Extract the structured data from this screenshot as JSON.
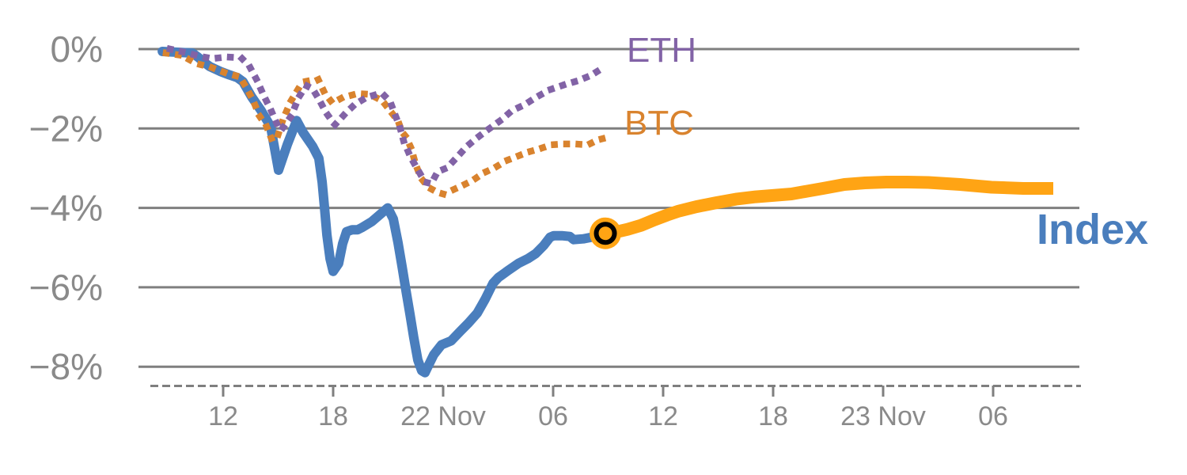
{
  "chart": {
    "series_labels": {
      "eth": "ETH",
      "btc": "BTC",
      "index": "Index"
    },
    "colors": {
      "eth": "#8263a6",
      "btc": "#d9832e",
      "index": "#4a7ebd",
      "forecast": "#ffa414",
      "grid": "#7f7f7f",
      "axis_text": "#8a8a8a",
      "marker_ring": "#000000",
      "background": "#ffffff"
    }
  },
  "chart_data": {
    "type": "line",
    "title": "",
    "xlabel": "",
    "ylabel": "",
    "x_unit": "hours relative to 22 Nov 00:00",
    "y_unit": "percent change",
    "grid": "horizontal",
    "legend_position": "inline-labels",
    "ylim": [
      -8.6,
      0.3
    ],
    "xlim": [
      -16.6,
      34.8
    ],
    "yticks": [
      {
        "value": 0,
        "label": "0%"
      },
      {
        "value": -2,
        "label": "−2%"
      },
      {
        "value": -4,
        "label": "−4%"
      },
      {
        "value": -6,
        "label": "−6%"
      },
      {
        "value": -8,
        "label": "−8%"
      }
    ],
    "xticks": [
      {
        "hour": -12,
        "label": "12"
      },
      {
        "hour": -6,
        "label": "18"
      },
      {
        "hour": 0,
        "label": "22 Nov"
      },
      {
        "hour": 6,
        "label": "06"
      },
      {
        "hour": 12,
        "label": "12"
      },
      {
        "hour": 18,
        "label": "18"
      },
      {
        "hour": 24,
        "label": "23 Nov"
      },
      {
        "hour": 30,
        "label": "06"
      }
    ],
    "series": [
      {
        "name": "Index",
        "style": "solid",
        "color_key": "index",
        "points": [
          [
            -15.32,
            -0.06
          ],
          [
            -13.68,
            -0.1
          ],
          [
            -13.38,
            -0.2
          ],
          [
            -13.08,
            -0.32
          ],
          [
            -12.73,
            -0.44
          ],
          [
            -12.17,
            -0.56
          ],
          [
            -11.66,
            -0.65
          ],
          [
            -11.22,
            -0.72
          ],
          [
            -10.92,
            -0.82
          ],
          [
            -10.45,
            -1.2
          ],
          [
            -9.93,
            -1.55
          ],
          [
            -9.41,
            -1.95
          ],
          [
            -8.98,
            -3.05
          ],
          [
            -8.5,
            -2.4
          ],
          [
            -7.99,
            -1.8
          ],
          [
            -7.64,
            -2.1
          ],
          [
            -7.12,
            -2.45
          ],
          [
            -6.78,
            -2.75
          ],
          [
            -6.6,
            -3.35
          ],
          [
            -6.47,
            -4.0
          ],
          [
            -6.34,
            -4.68
          ],
          [
            -6.17,
            -5.28
          ],
          [
            -6.0,
            -5.6
          ],
          [
            -5.7,
            -5.4
          ],
          [
            -5.48,
            -4.9
          ],
          [
            -5.27,
            -4.6
          ],
          [
            -4.96,
            -4.55
          ],
          [
            -4.66,
            -4.55
          ],
          [
            -4.45,
            -4.5
          ],
          [
            -3.88,
            -4.34
          ],
          [
            -3.37,
            -4.14
          ],
          [
            -3.02,
            -4.0
          ],
          [
            -2.72,
            -4.28
          ],
          [
            -2.46,
            -4.88
          ],
          [
            -2.24,
            -5.48
          ],
          [
            -2.03,
            -6.08
          ],
          [
            -1.81,
            -6.68
          ],
          [
            -1.6,
            -7.27
          ],
          [
            -1.38,
            -7.83
          ],
          [
            -1.17,
            -8.1
          ],
          [
            -0.99,
            -8.15
          ],
          [
            -0.78,
            -7.95
          ],
          [
            -0.52,
            -7.7
          ],
          [
            -0.09,
            -7.45
          ],
          [
            0.43,
            -7.35
          ],
          [
            0.95,
            -7.1
          ],
          [
            1.38,
            -6.9
          ],
          [
            1.86,
            -6.65
          ],
          [
            2.29,
            -6.3
          ],
          [
            2.72,
            -5.9
          ],
          [
            3.02,
            -5.75
          ],
          [
            3.54,
            -5.58
          ],
          [
            4.1,
            -5.4
          ],
          [
            4.62,
            -5.28
          ],
          [
            5.05,
            -5.15
          ],
          [
            5.48,
            -4.95
          ],
          [
            5.83,
            -4.74
          ],
          [
            6.04,
            -4.7
          ],
          [
            6.47,
            -4.7
          ],
          [
            6.91,
            -4.72
          ],
          [
            7.12,
            -4.8
          ],
          [
            7.64,
            -4.78
          ],
          [
            8.07,
            -4.74
          ],
          [
            8.63,
            -4.68
          ],
          [
            8.85,
            -4.64
          ]
        ]
      },
      {
        "name": "BTC",
        "style": "dotted",
        "color_key": "btc",
        "points": [
          [
            -15.11,
            -0.1
          ],
          [
            -14.25,
            -0.16
          ],
          [
            -13.47,
            -0.36
          ],
          [
            -12.65,
            -0.46
          ],
          [
            -11.87,
            -0.6
          ],
          [
            -11.09,
            -0.7
          ],
          [
            -10.7,
            -1.0
          ],
          [
            -10.36,
            -1.3
          ],
          [
            -10.01,
            -1.69
          ],
          [
            -9.63,
            -1.95
          ],
          [
            -9.37,
            -2.25
          ],
          [
            -9.11,
            -2.31
          ],
          [
            -8.72,
            -1.75
          ],
          [
            -8.29,
            -1.3
          ],
          [
            -7.9,
            -1.0
          ],
          [
            -7.55,
            -0.82
          ],
          [
            -7.34,
            -0.8
          ],
          [
            -6.82,
            -0.76
          ],
          [
            -6.47,
            -1.1
          ],
          [
            -6.04,
            -1.36
          ],
          [
            -5.48,
            -1.22
          ],
          [
            -4.66,
            -1.12
          ],
          [
            -4.01,
            -1.14
          ],
          [
            -3.32,
            -1.3
          ],
          [
            -2.46,
            -1.81
          ],
          [
            -2.24,
            -2.09
          ],
          [
            -2.03,
            -2.21
          ],
          [
            -1.73,
            -2.51
          ],
          [
            -1.51,
            -2.89
          ],
          [
            -1.21,
            -3.25
          ],
          [
            -0.78,
            -3.49
          ],
          [
            -0.3,
            -3.61
          ],
          [
            0.0,
            -3.65
          ],
          [
            0.52,
            -3.55
          ],
          [
            1.17,
            -3.41
          ],
          [
            1.6,
            -3.31
          ],
          [
            2.24,
            -3.11
          ],
          [
            2.81,
            -2.99
          ],
          [
            3.45,
            -2.81
          ],
          [
            4.1,
            -2.69
          ],
          [
            4.66,
            -2.59
          ],
          [
            5.27,
            -2.51
          ],
          [
            5.91,
            -2.41
          ],
          [
            6.56,
            -2.39
          ],
          [
            7.21,
            -2.39
          ],
          [
            7.9,
            -2.41
          ],
          [
            8.42,
            -2.29
          ],
          [
            8.76,
            -2.25
          ]
        ]
      },
      {
        "name": "ETH",
        "style": "dotted",
        "color_key": "eth",
        "points": [
          [
            -14.89,
            0.0
          ],
          [
            -14.12,
            -0.08
          ],
          [
            -13.29,
            -0.18
          ],
          [
            -12.6,
            -0.24
          ],
          [
            -11.78,
            -0.2
          ],
          [
            -11.01,
            -0.22
          ],
          [
            -10.58,
            -0.42
          ],
          [
            -10.14,
            -0.8
          ],
          [
            -9.8,
            -1.16
          ],
          [
            -9.41,
            -1.52
          ],
          [
            -9.06,
            -1.89
          ],
          [
            -8.85,
            -2.05
          ],
          [
            -8.29,
            -1.69
          ],
          [
            -7.86,
            -1.2
          ],
          [
            -7.47,
            -0.92
          ],
          [
            -7.12,
            -1.0
          ],
          [
            -6.78,
            -1.26
          ],
          [
            -6.39,
            -1.6
          ],
          [
            -5.91,
            -1.91
          ],
          [
            -5.31,
            -1.61
          ],
          [
            -4.83,
            -1.4
          ],
          [
            -4.19,
            -1.22
          ],
          [
            -3.76,
            -1.16
          ],
          [
            -3.32,
            -1.12
          ],
          [
            -2.89,
            -1.32
          ],
          [
            -2.59,
            -1.69
          ],
          [
            -2.37,
            -1.95
          ],
          [
            -2.16,
            -2.31
          ],
          [
            -1.81,
            -2.69
          ],
          [
            -1.42,
            -3.01
          ],
          [
            -0.99,
            -3.35
          ],
          [
            -0.65,
            -3.39
          ],
          [
            -0.3,
            -3.09
          ],
          [
            0.22,
            -2.99
          ],
          [
            0.78,
            -2.71
          ],
          [
            1.29,
            -2.45
          ],
          [
            1.81,
            -2.25
          ],
          [
            2.5,
            -2.01
          ],
          [
            3.15,
            -1.79
          ],
          [
            3.76,
            -1.55
          ],
          [
            4.45,
            -1.4
          ],
          [
            5.05,
            -1.22
          ],
          [
            5.83,
            -1.02
          ],
          [
            6.6,
            -0.9
          ],
          [
            7.34,
            -0.8
          ],
          [
            8.07,
            -0.66
          ],
          [
            8.76,
            -0.46
          ]
        ]
      },
      {
        "name": "Index forecast",
        "style": "thick",
        "color_key": "forecast",
        "points": [
          [
            8.85,
            -4.64
          ],
          [
            9.5,
            -4.6
          ],
          [
            10.06,
            -4.54
          ],
          [
            10.79,
            -4.44
          ],
          [
            11.53,
            -4.3
          ],
          [
            12.22,
            -4.18
          ],
          [
            12.86,
            -4.08
          ],
          [
            13.81,
            -3.97
          ],
          [
            14.89,
            -3.87
          ],
          [
            15.97,
            -3.78
          ],
          [
            17.05,
            -3.72
          ],
          [
            18.13,
            -3.68
          ],
          [
            19.0,
            -3.65
          ],
          [
            19.86,
            -3.58
          ],
          [
            20.72,
            -3.51
          ],
          [
            21.89,
            -3.41
          ],
          [
            23.01,
            -3.37
          ],
          [
            24.17,
            -3.35
          ],
          [
            25.34,
            -3.35
          ],
          [
            26.46,
            -3.36
          ],
          [
            28.19,
            -3.41
          ],
          [
            29.91,
            -3.48
          ],
          [
            31.64,
            -3.51
          ],
          [
            33.28,
            -3.51
          ]
        ]
      }
    ],
    "marker": {
      "hour": 8.85,
      "value": -4.64,
      "description": "forecast start point"
    }
  }
}
